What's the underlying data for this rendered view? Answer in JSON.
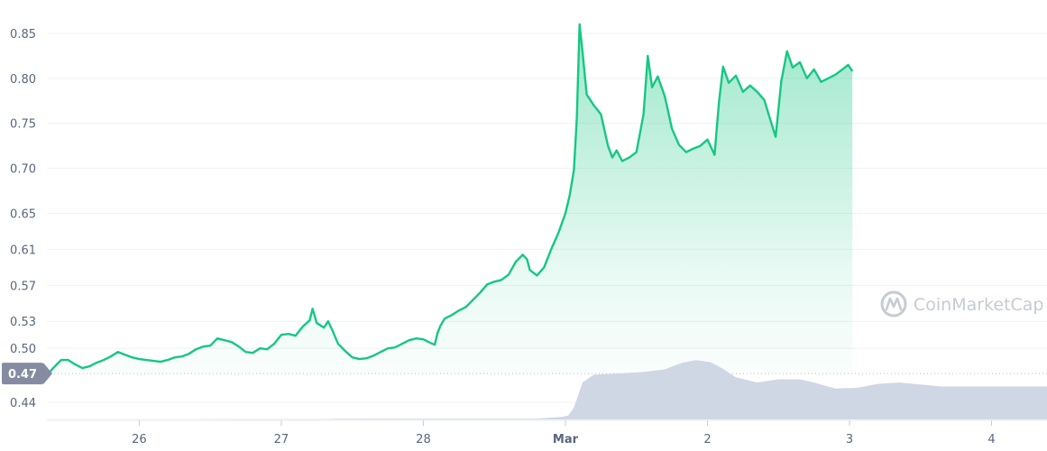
{
  "chart_data": {
    "type": "area",
    "watermark": "CoinMarketCap",
    "y_ticks": [
      "0.85",
      "0.80",
      "0.75",
      "0.70",
      "0.65",
      "0.61",
      "0.57",
      "0.53",
      "0.50",
      "0.44"
    ],
    "y_tick_values": [
      0.85,
      0.8,
      0.75,
      0.7,
      0.65,
      0.61,
      0.57,
      0.53,
      0.5,
      0.44
    ],
    "ylim": [
      0.421,
      0.873
    ],
    "x_ticks": [
      {
        "label": "26",
        "t": 1.6,
        "bold": false
      },
      {
        "label": "27",
        "t": 2.6,
        "bold": false
      },
      {
        "label": "28",
        "t": 3.6,
        "bold": false
      },
      {
        "label": "Mar",
        "t": 4.6,
        "bold": true
      },
      {
        "label": "2",
        "t": 5.6,
        "bold": false
      },
      {
        "label": "3",
        "t": 6.6,
        "bold": false
      },
      {
        "label": "4",
        "t": 7.6,
        "bold": false
      }
    ],
    "xlim": [
      0.95,
      7.99
    ],
    "open_price": {
      "label": "0.47",
      "value": 0.472
    },
    "colors": {
      "line": "#16c784",
      "fill_top": "#16c784",
      "volume": "#cfd6e4",
      "badge": "#858ca2"
    },
    "price": [
      [
        0.95,
        0.47
      ],
      [
        1.0,
        0.479
      ],
      [
        1.05,
        0.487
      ],
      [
        1.1,
        0.487
      ],
      [
        1.15,
        0.482
      ],
      [
        1.2,
        0.478
      ],
      [
        1.25,
        0.48
      ],
      [
        1.3,
        0.484
      ],
      [
        1.35,
        0.487
      ],
      [
        1.4,
        0.491
      ],
      [
        1.45,
        0.496
      ],
      [
        1.5,
        0.493
      ],
      [
        1.55,
        0.49
      ],
      [
        1.6,
        0.488
      ],
      [
        1.65,
        0.487
      ],
      [
        1.7,
        0.486
      ],
      [
        1.75,
        0.485
      ],
      [
        1.8,
        0.487
      ],
      [
        1.85,
        0.49
      ],
      [
        1.9,
        0.491
      ],
      [
        1.95,
        0.494
      ],
      [
        2.0,
        0.499
      ],
      [
        2.05,
        0.502
      ],
      [
        2.1,
        0.503
      ],
      [
        2.15,
        0.511
      ],
      [
        2.2,
        0.509
      ],
      [
        2.25,
        0.507
      ],
      [
        2.3,
        0.502
      ],
      [
        2.35,
        0.496
      ],
      [
        2.4,
        0.495
      ],
      [
        2.45,
        0.5
      ],
      [
        2.5,
        0.499
      ],
      [
        2.55,
        0.505
      ],
      [
        2.6,
        0.515
      ],
      [
        2.65,
        0.516
      ],
      [
        2.7,
        0.514
      ],
      [
        2.75,
        0.524
      ],
      [
        2.8,
        0.531
      ],
      [
        2.82,
        0.544
      ],
      [
        2.85,
        0.528
      ],
      [
        2.9,
        0.523
      ],
      [
        2.93,
        0.53
      ],
      [
        2.96,
        0.52
      ],
      [
        3.0,
        0.505
      ],
      [
        3.05,
        0.497
      ],
      [
        3.1,
        0.49
      ],
      [
        3.15,
        0.488
      ],
      [
        3.2,
        0.489
      ],
      [
        3.25,
        0.492
      ],
      [
        3.3,
        0.496
      ],
      [
        3.35,
        0.5
      ],
      [
        3.4,
        0.501
      ],
      [
        3.45,
        0.505
      ],
      [
        3.5,
        0.509
      ],
      [
        3.55,
        0.511
      ],
      [
        3.6,
        0.51
      ],
      [
        3.65,
        0.506
      ],
      [
        3.68,
        0.504
      ],
      [
        3.7,
        0.517
      ],
      [
        3.72,
        0.525
      ],
      [
        3.75,
        0.533
      ],
      [
        3.8,
        0.537
      ],
      [
        3.85,
        0.542
      ],
      [
        3.9,
        0.546
      ],
      [
        3.95,
        0.554
      ],
      [
        4.0,
        0.562
      ],
      [
        4.05,
        0.571
      ],
      [
        4.1,
        0.574
      ],
      [
        4.15,
        0.576
      ],
      [
        4.2,
        0.582
      ],
      [
        4.25,
        0.596
      ],
      [
        4.3,
        0.604
      ],
      [
        4.33,
        0.599
      ],
      [
        4.35,
        0.587
      ],
      [
        4.4,
        0.581
      ],
      [
        4.45,
        0.59
      ],
      [
        4.5,
        0.61
      ],
      [
        4.55,
        0.628
      ],
      [
        4.6,
        0.65
      ],
      [
        4.63,
        0.67
      ],
      [
        4.66,
        0.698
      ],
      [
        4.68,
        0.755
      ],
      [
        4.7,
        0.86
      ],
      [
        4.72,
        0.83
      ],
      [
        4.75,
        0.782
      ],
      [
        4.8,
        0.77
      ],
      [
        4.85,
        0.76
      ],
      [
        4.9,
        0.725
      ],
      [
        4.93,
        0.712
      ],
      [
        4.96,
        0.72
      ],
      [
        5.0,
        0.708
      ],
      [
        5.05,
        0.712
      ],
      [
        5.1,
        0.718
      ],
      [
        5.15,
        0.76
      ],
      [
        5.18,
        0.825
      ],
      [
        5.21,
        0.79
      ],
      [
        5.25,
        0.802
      ],
      [
        5.3,
        0.78
      ],
      [
        5.35,
        0.744
      ],
      [
        5.4,
        0.726
      ],
      [
        5.45,
        0.718
      ],
      [
        5.5,
        0.722
      ],
      [
        5.55,
        0.725
      ],
      [
        5.6,
        0.732
      ],
      [
        5.65,
        0.715
      ],
      [
        5.68,
        0.772
      ],
      [
        5.71,
        0.813
      ],
      [
        5.75,
        0.795
      ],
      [
        5.8,
        0.803
      ],
      [
        5.85,
        0.785
      ],
      [
        5.9,
        0.792
      ],
      [
        5.95,
        0.785
      ],
      [
        6.0,
        0.776
      ],
      [
        6.05,
        0.75
      ],
      [
        6.08,
        0.735
      ],
      [
        6.12,
        0.797
      ],
      [
        6.16,
        0.83
      ],
      [
        6.2,
        0.812
      ],
      [
        6.25,
        0.818
      ],
      [
        6.3,
        0.8
      ],
      [
        6.35,
        0.81
      ],
      [
        6.4,
        0.796
      ],
      [
        6.45,
        0.8
      ],
      [
        6.5,
        0.804
      ],
      [
        6.55,
        0.81
      ],
      [
        6.59,
        0.815
      ],
      [
        6.62,
        0.808
      ]
    ],
    "volume": [
      [
        0.95,
        0.003
      ],
      [
        1.5,
        0.003
      ],
      [
        1.9,
        0.004
      ],
      [
        2.0,
        0.004
      ],
      [
        2.9,
        0.006
      ],
      [
        3.0,
        0.01
      ],
      [
        3.6,
        0.012
      ],
      [
        4.4,
        0.012
      ],
      [
        4.58,
        0.04
      ],
      [
        4.62,
        0.06
      ],
      [
        4.66,
        0.18
      ],
      [
        4.72,
        0.56
      ],
      [
        4.8,
        0.68
      ],
      [
        5.0,
        0.7
      ],
      [
        5.15,
        0.72
      ],
      [
        5.3,
        0.76
      ],
      [
        5.42,
        0.86
      ],
      [
        5.52,
        0.9
      ],
      [
        5.62,
        0.87
      ],
      [
        5.7,
        0.78
      ],
      [
        5.8,
        0.64
      ],
      [
        5.95,
        0.56
      ],
      [
        6.1,
        0.61
      ],
      [
        6.25,
        0.61
      ],
      [
        6.35,
        0.56
      ],
      [
        6.5,
        0.47
      ],
      [
        6.65,
        0.48
      ],
      [
        6.8,
        0.54
      ],
      [
        6.95,
        0.56
      ],
      [
        7.1,
        0.53
      ],
      [
        7.25,
        0.5
      ],
      [
        7.99,
        0.5
      ]
    ],
    "volume_max_fraction": 1.0
  }
}
